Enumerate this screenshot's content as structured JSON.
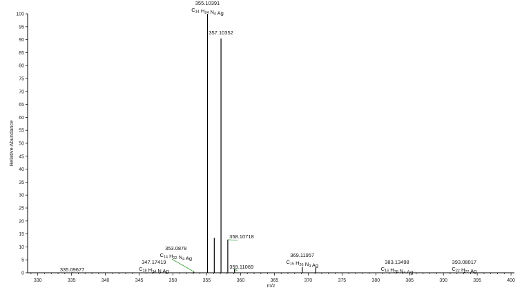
{
  "chart_data": {
    "type": "bar",
    "xlabel": "m/z",
    "ylabel": "Relative Abundance",
    "xlim": [
      328.5,
      400.5
    ],
    "ylim": [
      0,
      100
    ],
    "x_ticks": [
      330,
      335,
      340,
      345,
      350,
      355,
      360,
      365,
      370,
      375,
      380,
      385,
      390,
      395,
      400
    ],
    "x_tick_labels": [
      "330",
      "335",
      "340",
      "345",
      "350",
      "355",
      "360",
      "365",
      "370",
      "375",
      "380",
      "385",
      "390",
      "395",
      "400"
    ],
    "y_ticks": [
      0,
      5,
      10,
      15,
      20,
      25,
      30,
      35,
      40,
      45,
      50,
      55,
      60,
      65,
      70,
      75,
      80,
      85,
      90,
      95,
      100
    ],
    "y_tick_labels": [
      "0",
      "5",
      "10",
      "15",
      "20",
      "25",
      "30",
      "35",
      "40",
      "45",
      "50",
      "55",
      "60",
      "65",
      "70",
      "75",
      "80",
      "85",
      "90",
      "95",
      "100"
    ],
    "peaks": [
      {
        "mz": 335.09677,
        "intensity": 0.2
      },
      {
        "mz": 347.17419,
        "intensity": 0.3
      },
      {
        "mz": 353.0878,
        "intensity": 0.4
      },
      {
        "mz": 355.10391,
        "intensity": 100
      },
      {
        "mz": 356.107,
        "intensity": 13.5
      },
      {
        "mz": 357.10352,
        "intensity": 90.5
      },
      {
        "mz": 358.10718,
        "intensity": 12.8
      },
      {
        "mz": 359.11069,
        "intensity": 1.5
      },
      {
        "mz": 369.11957,
        "intensity": 2.2
      },
      {
        "mz": 371.12,
        "intensity": 2.0
      },
      {
        "mz": 383.13498,
        "intensity": 0.3
      },
      {
        "mz": 393.08017,
        "intensity": 0.3
      }
    ],
    "annotations": [
      {
        "mz_label": "355.10391",
        "anchor_mz": 355.10391,
        "anchor_y": 100,
        "formula": [
          {
            "t": "C"
          },
          {
            "t": "14",
            "s": 1
          },
          {
            "t": " H"
          },
          {
            "t": "24",
            "s": 1
          },
          {
            "t": " N"
          },
          {
            "t": "4",
            "s": 1
          },
          {
            "t": " Ag"
          }
        ]
      },
      {
        "mz_label": "357.10352",
        "anchor_mz": 357.10352,
        "anchor_y": 90.5,
        "formula": []
      },
      {
        "mz_label": "358.10718",
        "anchor_mz": 358.10718,
        "anchor_y": 12.8,
        "formula": []
      },
      {
        "mz_label": "359.11069",
        "anchor_mz": 359.11069,
        "anchor_y": 1.5,
        "formula": []
      },
      {
        "mz_label": "353.0878",
        "anchor_mz": 353.0878,
        "anchor_y": 0.4,
        "formula": [
          {
            "t": "C"
          },
          {
            "t": "14",
            "s": 1
          },
          {
            "t": " H"
          },
          {
            "t": "22",
            "s": 1
          },
          {
            "t": " N"
          },
          {
            "t": "4",
            "s": 1
          },
          {
            "t": " Ag"
          }
        ]
      },
      {
        "mz_label": "347.17419",
        "anchor_mz": 347.17419,
        "anchor_y": 0.3,
        "formula": [
          {
            "t": "C"
          },
          {
            "t": "18",
            "s": 1
          },
          {
            "t": " H"
          },
          {
            "t": "34",
            "s": 1
          },
          {
            "t": " N Ag"
          }
        ]
      },
      {
        "mz_label": "335.09677",
        "anchor_mz": 335.09677,
        "anchor_y": 0.2,
        "formula": []
      },
      {
        "mz_label": "369.11957",
        "anchor_mz": 369.11957,
        "anchor_y": 2.2,
        "formula": [
          {
            "t": "C"
          },
          {
            "t": "15",
            "s": 1
          },
          {
            "t": " H"
          },
          {
            "t": "26",
            "s": 1
          },
          {
            "t": " N"
          },
          {
            "t": "4",
            "s": 1
          },
          {
            "t": " Ag"
          }
        ]
      },
      {
        "mz_label": "383.13498",
        "anchor_mz": 383.13498,
        "anchor_y": 0.3,
        "formula": [
          {
            "t": "C"
          },
          {
            "t": "16",
            "s": 1
          },
          {
            "t": " H"
          },
          {
            "t": "28",
            "s": 1
          },
          {
            "t": " N"
          },
          {
            "t": "4",
            "s": 1
          },
          {
            "t": " Ag"
          }
        ]
      },
      {
        "mz_label": "393.08017",
        "anchor_mz": 393.08017,
        "anchor_y": 0.3,
        "formula": [
          {
            "t": "C"
          },
          {
            "t": "22",
            "s": 1
          },
          {
            "t": " H"
          },
          {
            "t": "22",
            "s": 1
          },
          {
            "t": " Ag"
          }
        ]
      }
    ],
    "colors": {
      "peak": "#000000",
      "leader": "#2e9a2e",
      "axis": "#000000"
    }
  }
}
